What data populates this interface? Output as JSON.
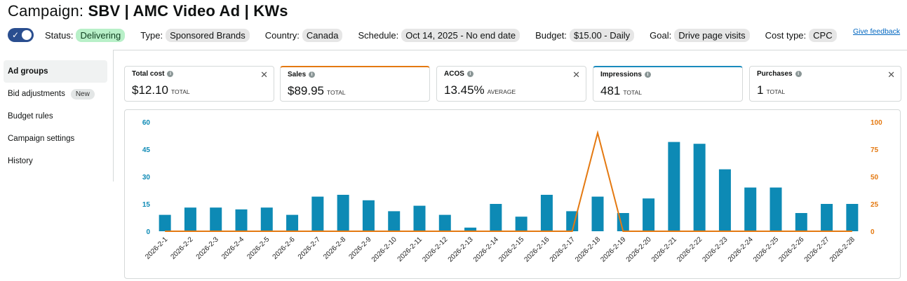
{
  "title": {
    "prefix": "Campaign:",
    "name": "SBV | AMC Video Ad | KWs"
  },
  "meta": {
    "status_label": "Status:",
    "status_value": "Delivering",
    "type_label": "Type:",
    "type_value": "Sponsored Brands",
    "country_label": "Country:",
    "country_value": "Canada",
    "schedule_label": "Schedule:",
    "schedule_value": "Oct 14, 2025 - No end date",
    "budget_label": "Budget:",
    "budget_value": "$15.00 - Daily",
    "goal_label": "Goal:",
    "goal_value": "Drive page visits",
    "cost_label": "Cost type:",
    "cost_value": "CPC",
    "feedback": "Give feedback",
    "toggle_check": "✓"
  },
  "sidebar": {
    "items": [
      {
        "label": "Ad groups"
      },
      {
        "label": "Bid adjustments",
        "badge": "New"
      },
      {
        "label": "Budget rules"
      },
      {
        "label": "Campaign settings"
      },
      {
        "label": "History"
      }
    ]
  },
  "cards": [
    {
      "title": "Total cost",
      "value": "$12.10",
      "unit": "TOTAL"
    },
    {
      "title": "Sales",
      "value": "$89.95",
      "unit": "TOTAL"
    },
    {
      "title": "ACOS",
      "value": "13.45%",
      "unit": "AVERAGE"
    },
    {
      "title": "Impressions",
      "value": "481",
      "unit": "TOTAL"
    },
    {
      "title": "Purchases",
      "value": "1",
      "unit": "TOTAL"
    }
  ],
  "icons": {
    "info": "i",
    "close": "✕"
  },
  "colors": {
    "bars": "#0d8ab5",
    "line": "#e47911",
    "accent_toggle": "#2a4e8f",
    "status_green": "#b8f0c8"
  },
  "chart_data": {
    "type": "bar",
    "categories": [
      "2026-2-1",
      "2026-2-2",
      "2026-2-3",
      "2026-2-4",
      "2026-2-5",
      "2026-2-6",
      "2026-2-7",
      "2026-2-8",
      "2026-2-9",
      "2026-2-10",
      "2026-2-11",
      "2026-2-12",
      "2026-2-13",
      "2026-2-14",
      "2026-2-15",
      "2026-2-16",
      "2026-2-17",
      "2026-2-18",
      "2026-2-19",
      "2026-2-20",
      "2026-2-21",
      "2026-2-22",
      "2026-2-23",
      "2026-2-24",
      "2026-2-25",
      "2026-2-26",
      "2026-2-27",
      "2026-2-28"
    ],
    "series": [
      {
        "name": "Impressions",
        "type": "bar",
        "axis": "left",
        "values": [
          9,
          13,
          13,
          12,
          13,
          9,
          19,
          20,
          17,
          11,
          14,
          9,
          2,
          15,
          8,
          20,
          11,
          19,
          10,
          18,
          49,
          48,
          34,
          24,
          24,
          10,
          15,
          15
        ]
      },
      {
        "name": "Sales",
        "type": "line",
        "axis": "right",
        "values": [
          0,
          0,
          0,
          0,
          0,
          0,
          0,
          0,
          0,
          0,
          0,
          0,
          0,
          0,
          0,
          0,
          0,
          89.95,
          0,
          0,
          0,
          0,
          0,
          0,
          0,
          0,
          0,
          0
        ]
      }
    ],
    "left_axis": {
      "ticks": [
        "0",
        "15",
        "30",
        "45",
        "60"
      ],
      "range": [
        0,
        60
      ]
    },
    "right_axis": {
      "ticks": [
        "0",
        "25",
        "50",
        "75",
        "100"
      ],
      "range": [
        0,
        100
      ]
    },
    "grid": false
  }
}
